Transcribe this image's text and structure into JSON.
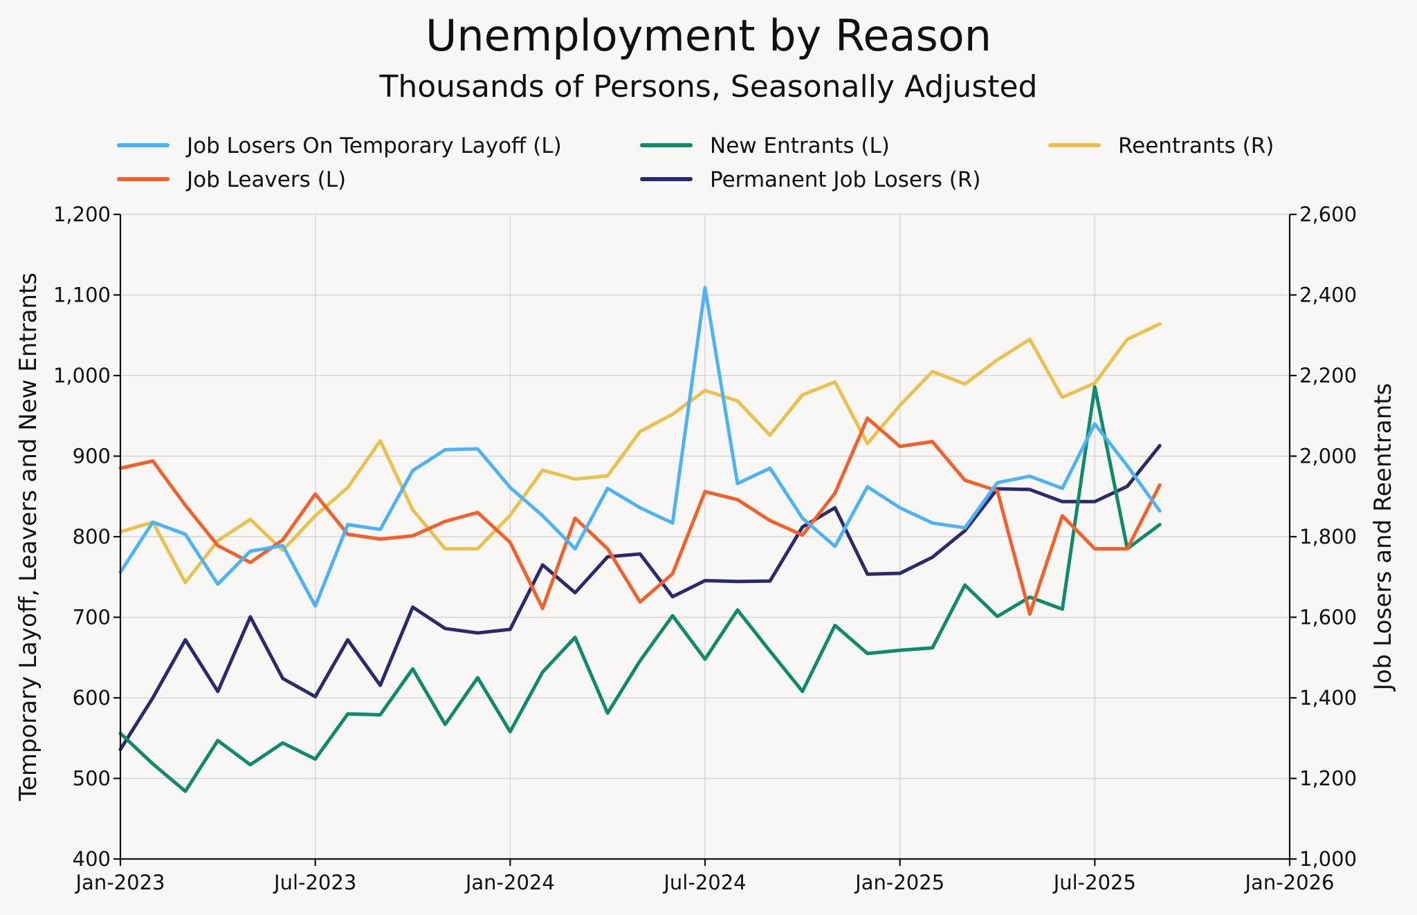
{
  "chart_data": {
    "type": "line",
    "title": "Unemployment by Reason",
    "subtitle": "Thousands of Persons, Seasonally Adjusted",
    "ylabel_left": "Temporary Layoff, Leavers and New Entrants",
    "ylabel_right": "Job Losers and Reentrants",
    "ylim_left": [
      400,
      1200
    ],
    "ylim_right": [
      1000,
      2600
    ],
    "xlim": [
      "Jan-2023",
      "Jan-2026"
    ],
    "grid": true,
    "left_ticks": [
      {
        "value": 400,
        "label": "400"
      },
      {
        "value": 500,
        "label": "500"
      },
      {
        "value": 600,
        "label": "600"
      },
      {
        "value": 700,
        "label": "700"
      },
      {
        "value": 800,
        "label": "800"
      },
      {
        "value": 900,
        "label": "900"
      },
      {
        "value": 1000,
        "label": "1,000"
      },
      {
        "value": 1100,
        "label": "1,100"
      },
      {
        "value": 1200,
        "label": "1,200"
      }
    ],
    "right_ticks": [
      {
        "value": 1000,
        "label": "1,000"
      },
      {
        "value": 1200,
        "label": "1,200"
      },
      {
        "value": 1400,
        "label": "1,400"
      },
      {
        "value": 1600,
        "label": "1,600"
      },
      {
        "value": 1800,
        "label": "1,800"
      },
      {
        "value": 2000,
        "label": "2,000"
      },
      {
        "value": 2200,
        "label": "2,200"
      },
      {
        "value": 2400,
        "label": "2,400"
      },
      {
        "value": 2600,
        "label": "2,600"
      }
    ],
    "x_ticks": [
      {
        "month": 0,
        "label": "Jan-2023"
      },
      {
        "month": 6,
        "label": "Jul-2023"
      },
      {
        "month": 12,
        "label": "Jan-2024"
      },
      {
        "month": 18,
        "label": "Jul-2024"
      },
      {
        "month": 24,
        "label": "Jan-2025"
      },
      {
        "month": 30,
        "label": "Jul-2025"
      },
      {
        "month": 36,
        "label": "Jan-2026"
      }
    ],
    "series": [
      {
        "name": "Job Losers On Temporary Layoff (L)",
        "axis": "left",
        "color": "#4db3f5",
        "values": [
          756,
          818,
          803,
          741,
          782,
          789,
          714,
          815,
          809,
          882,
          908,
          909,
          861,
          826,
          785,
          860,
          836,
          817,
          1109,
          866,
          885,
          823,
          788,
          862,
          836,
          817,
          811,
          867,
          875,
          860,
          940,
          888,
          832
        ]
      },
      {
        "name": "Job Leavers (L)",
        "axis": "left",
        "color": "#f4602a",
        "values": [
          885,
          894,
          839,
          789,
          768,
          796,
          853,
          803,
          797,
          801,
          819,
          830,
          793,
          711,
          823,
          785,
          719,
          754,
          856,
          846,
          820,
          802,
          854,
          947,
          912,
          918,
          870,
          857,
          704,
          826,
          785,
          785,
          864
        ]
      },
      {
        "name": "New Entrants (L)",
        "axis": "left",
        "color": "#0f8a6a",
        "values": [
          556,
          518,
          484,
          547,
          517,
          544,
          524,
          580,
          579,
          636,
          567,
          625,
          558,
          632,
          675,
          581,
          646,
          702,
          648,
          709,
          658,
          608,
          690,
          655,
          659,
          662,
          740,
          701,
          725,
          710,
          986,
          785,
          815
        ]
      },
      {
        "name": "Permanent Job Losers (R)",
        "axis": "right",
        "color": "#2b2a6b",
        "values": [
          1272,
          1400,
          1544,
          1416,
          1601,
          1448,
          1403,
          1544,
          1431,
          1625,
          1572,
          1561,
          1570,
          1730,
          1661,
          1750,
          1757,
          1651,
          1691,
          1689,
          1690,
          1824,
          1872,
          1707,
          1709,
          1749,
          1815,
          1919,
          1917,
          1887,
          1887,
          1925,
          2026
        ]
      },
      {
        "name": "Reentrants (R)",
        "axis": "right",
        "color": "#e9c14c",
        "values": [
          1812,
          1836,
          1686,
          1790,
          1843,
          1766,
          1852,
          1922,
          2038,
          1867,
          1770,
          1770,
          1853,
          1965,
          1943,
          1951,
          2061,
          2104,
          2163,
          2137,
          2052,
          2152,
          2184,
          2031,
          2126,
          2210,
          2179,
          2239,
          2290,
          2146,
          2181,
          2290,
          2328
        ]
      }
    ]
  }
}
